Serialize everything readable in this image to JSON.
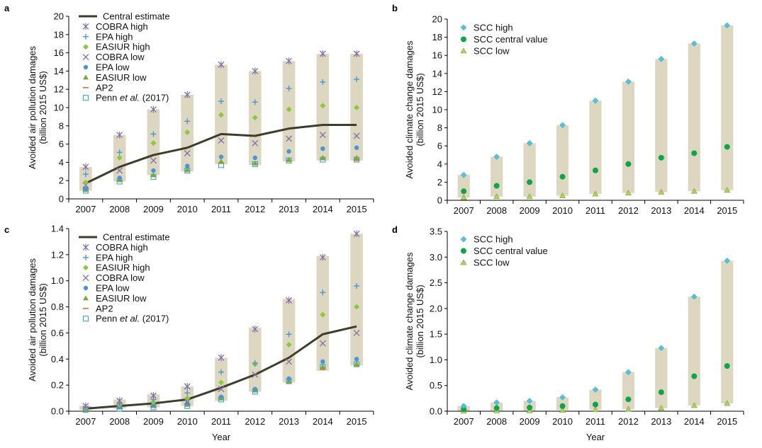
{
  "year_axis_label": "Year",
  "colors": {
    "range_bar": "#ddd6c1",
    "central_line": "#3d3d2c",
    "cobra": "#7f6ea8",
    "epa_high": "#4d95d1",
    "easiur_high": "#8dc63f",
    "epa_low": "#4d95d1",
    "easiur_low": "#7aa83c",
    "ap2": "#e0713a",
    "penn": "#38a8c7",
    "scc_high": "#55c2d9",
    "scc_central": "#10a34a",
    "scc_low": "#b0d25a"
  },
  "chart_data": [
    {
      "panel": "a",
      "type": "scatter",
      "ylabel": [
        "Avoided air pollution damages",
        "(billion 2015 US$)"
      ],
      "ylim": [
        0,
        20
      ],
      "yticks": [
        "0",
        "2",
        "4",
        "6",
        "8",
        "10",
        "12",
        "14",
        "16",
        "18",
        "20"
      ],
      "categories": [
        "2007",
        "2008",
        "2009",
        "2010",
        "2011",
        "2012",
        "2013",
        "2014",
        "2015"
      ],
      "range_bars": {
        "low": [
          0.9,
          1.9,
          2.6,
          3.0,
          3.8,
          3.7,
          4.1,
          4.2,
          4.2
        ],
        "high": [
          3.5,
          7.0,
          9.8,
          11.4,
          14.7,
          14.0,
          15.1,
          15.9,
          15.9
        ]
      },
      "legend": [
        {
          "key": "central",
          "label": "Central estimate"
        },
        {
          "key": "cobra_high",
          "label": "COBRA high"
        },
        {
          "key": "epa_high",
          "label": "EPA high"
        },
        {
          "key": "easiur_high",
          "label": "EASIUR high"
        },
        {
          "key": "cobra_low",
          "label": "COBRA low"
        },
        {
          "key": "epa_low",
          "label": "EPA low"
        },
        {
          "key": "easiur_low",
          "label": "EASIUR low"
        },
        {
          "key": "ap2",
          "label": "AP2"
        },
        {
          "key": "penn",
          "label": "Penn et al. (2017)"
        }
      ],
      "series": [
        {
          "key": "central",
          "values": [
            1.7,
            3.5,
            4.8,
            5.6,
            7.1,
            6.9,
            7.7,
            8.1,
            8.1
          ]
        },
        {
          "key": "cobra_high",
          "values": [
            3.5,
            7.0,
            9.8,
            11.4,
            14.7,
            14.0,
            15.1,
            15.9,
            15.9
          ]
        },
        {
          "key": "epa_high",
          "values": [
            2.7,
            5.1,
            7.1,
            8.5,
            10.7,
            10.6,
            12.1,
            12.8,
            13.1
          ]
        },
        {
          "key": "easiur_high",
          "values": [
            1.8,
            4.5,
            6.1,
            7.3,
            9.2,
            8.9,
            9.8,
            10.2,
            10.0
          ]
        },
        {
          "key": "cobra_low",
          "values": [
            1.5,
            3.1,
            4.2,
            5.0,
            6.4,
            6.1,
            6.6,
            7.0,
            6.9
          ]
        },
        {
          "key": "epa_low",
          "values": [
            1.1,
            2.3,
            3.1,
            3.6,
            4.6,
            4.5,
            5.2,
            5.5,
            5.6
          ]
        },
        {
          "key": "easiur_low",
          "values": [
            1.0,
            2.1,
            2.6,
            3.2,
            4.1,
            3.9,
            4.3,
            4.5,
            4.5
          ]
        },
        {
          "key": "ap2",
          "values": [
            0.9,
            1.9,
            2.5,
            3.0,
            3.9,
            3.8,
            4.1,
            4.3,
            4.2
          ]
        },
        {
          "key": "penn",
          "values": [
            0.9,
            1.9,
            2.4,
            3.1,
            3.7,
            3.8,
            4.2,
            4.3,
            4.3
          ]
        }
      ]
    },
    {
      "panel": "b",
      "type": "scatter",
      "ylabel": [
        "Avoided climate change damages",
        "(billion 2015 US$)"
      ],
      "ylim": [
        0,
        20
      ],
      "yticks": [
        "0",
        "2",
        "4",
        "6",
        "8",
        "10",
        "12",
        "14",
        "16",
        "18",
        "20"
      ],
      "categories": [
        "2007",
        "2008",
        "2009",
        "2010",
        "2011",
        "2012",
        "2013",
        "2014",
        "2015"
      ],
      "range_bars": {
        "low": [
          0.3,
          0.4,
          0.4,
          0.5,
          0.7,
          0.8,
          0.9,
          1.0,
          1.1
        ],
        "high": [
          2.8,
          4.8,
          6.3,
          8.3,
          11.0,
          13.1,
          15.6,
          17.3,
          19.3
        ]
      },
      "legend": [
        {
          "key": "scc_high",
          "label": "SCC high"
        },
        {
          "key": "scc_central",
          "label": "SCC central value"
        },
        {
          "key": "scc_low",
          "label": "SCC low"
        }
      ],
      "series": [
        {
          "key": "scc_high",
          "values": [
            2.8,
            4.8,
            6.3,
            8.3,
            11.0,
            13.1,
            15.6,
            17.3,
            19.3
          ]
        },
        {
          "key": "scc_central",
          "values": [
            1.0,
            1.6,
            2.0,
            2.6,
            3.3,
            4.0,
            4.7,
            5.2,
            5.9
          ]
        },
        {
          "key": "scc_low",
          "values": [
            0.3,
            0.4,
            0.4,
            0.5,
            0.7,
            0.8,
            0.9,
            1.0,
            1.1
          ]
        }
      ]
    },
    {
      "panel": "c",
      "type": "scatter",
      "ylabel": [
        "Avoided air pollution damages",
        "(billion 2015 US$)"
      ],
      "ylim": [
        0,
        1.4
      ],
      "yticks": [
        "0.0",
        "0.2",
        "0.4",
        "0.6",
        "0.8",
        "1.0",
        "1.2",
        "1.4"
      ],
      "categories": [
        "2007",
        "2008",
        "2009",
        "2010",
        "2011",
        "2012",
        "2013",
        "2014",
        "2015"
      ],
      "range_bars": {
        "low": [
          0.01,
          0.02,
          0.03,
          0.04,
          0.08,
          0.15,
          0.22,
          0.31,
          0.35
        ],
        "high": [
          0.04,
          0.09,
          0.13,
          0.19,
          0.41,
          0.64,
          0.86,
          1.19,
          1.36
        ]
      },
      "legend": [
        {
          "key": "central",
          "label": "Central estimate"
        },
        {
          "key": "cobra_high",
          "label": "COBRA high"
        },
        {
          "key": "epa_high",
          "label": "EPA high"
        },
        {
          "key": "easiur_high",
          "label": "EASIUR high"
        },
        {
          "key": "cobra_low",
          "label": "COBRA low"
        },
        {
          "key": "epa_low",
          "label": "EPA low"
        },
        {
          "key": "easiur_low",
          "label": "EASIUR low"
        },
        {
          "key": "ap2",
          "label": "AP2"
        },
        {
          "key": "penn",
          "label": "Penn et al. (2017)"
        }
      ],
      "series": [
        {
          "key": "central",
          "values": [
            0.02,
            0.04,
            0.06,
            0.09,
            0.18,
            0.28,
            0.41,
            0.59,
            0.65
          ]
        },
        {
          "key": "cobra_high",
          "values": [
            0.04,
            0.08,
            0.12,
            0.19,
            0.41,
            0.63,
            0.85,
            1.18,
            1.36
          ]
        },
        {
          "key": "epa_high",
          "values": [
            0.03,
            0.06,
            0.09,
            0.14,
            0.3,
            0.37,
            0.59,
            0.91,
            0.96
          ]
        },
        {
          "key": "easiur_high",
          "values": [
            0.02,
            0.05,
            0.07,
            0.1,
            0.22,
            0.36,
            0.51,
            0.74,
            0.8
          ]
        },
        {
          "key": "cobra_low",
          "values": [
            0.02,
            0.04,
            0.05,
            0.07,
            0.17,
            0.28,
            0.38,
            0.52,
            0.6
          ]
        },
        {
          "key": "epa_low",
          "values": [
            0.01,
            0.03,
            0.05,
            0.06,
            0.11,
            0.17,
            0.25,
            0.38,
            0.4
          ]
        },
        {
          "key": "easiur_low",
          "values": [
            0.01,
            0.03,
            0.04,
            0.05,
            0.1,
            0.16,
            0.23,
            0.34,
            0.36
          ]
        },
        {
          "key": "ap2",
          "values": [
            0.01,
            0.02,
            0.03,
            0.05,
            0.09,
            0.15,
            0.22,
            0.32,
            0.35
          ]
        },
        {
          "key": "penn",
          "values": [
            0.01,
            0.02,
            0.03,
            0.04,
            0.09,
            0.15,
            0.23,
            0.34,
            0.36
          ]
        }
      ]
    },
    {
      "panel": "d",
      "type": "scatter",
      "ylabel": [
        "Avoided climate change damages",
        "(billion 2015 US$)"
      ],
      "ylim": [
        0,
        3.5
      ],
      "yticks": [
        "0.0",
        "0.5",
        "1.0",
        "1.5",
        "2.0",
        "2.5",
        "3.0",
        "3.5"
      ],
      "categories": [
        "2007",
        "2008",
        "2009",
        "2010",
        "2011",
        "2012",
        "2013",
        "2014",
        "2015"
      ],
      "range_bars": {
        "low": [
          0.0,
          0.01,
          0.01,
          0.02,
          0.03,
          0.04,
          0.06,
          0.11,
          0.15
        ],
        "high": [
          0.1,
          0.17,
          0.2,
          0.27,
          0.42,
          0.76,
          1.23,
          2.23,
          2.93
        ]
      },
      "legend": [
        {
          "key": "scc_high",
          "label": "SCC high"
        },
        {
          "key": "scc_central",
          "label": "SCC central value"
        },
        {
          "key": "scc_low",
          "label": "SCC low"
        }
      ],
      "series": [
        {
          "key": "scc_high",
          "values": [
            0.1,
            0.17,
            0.2,
            0.27,
            0.42,
            0.76,
            1.23,
            2.23,
            2.93
          ]
        },
        {
          "key": "scc_central",
          "values": [
            0.04,
            0.06,
            0.07,
            0.1,
            0.13,
            0.23,
            0.37,
            0.68,
            0.88
          ]
        },
        {
          "key": "scc_low",
          "values": [
            0.0,
            0.01,
            0.01,
            0.02,
            0.03,
            0.04,
            0.06,
            0.11,
            0.15
          ]
        }
      ]
    }
  ]
}
